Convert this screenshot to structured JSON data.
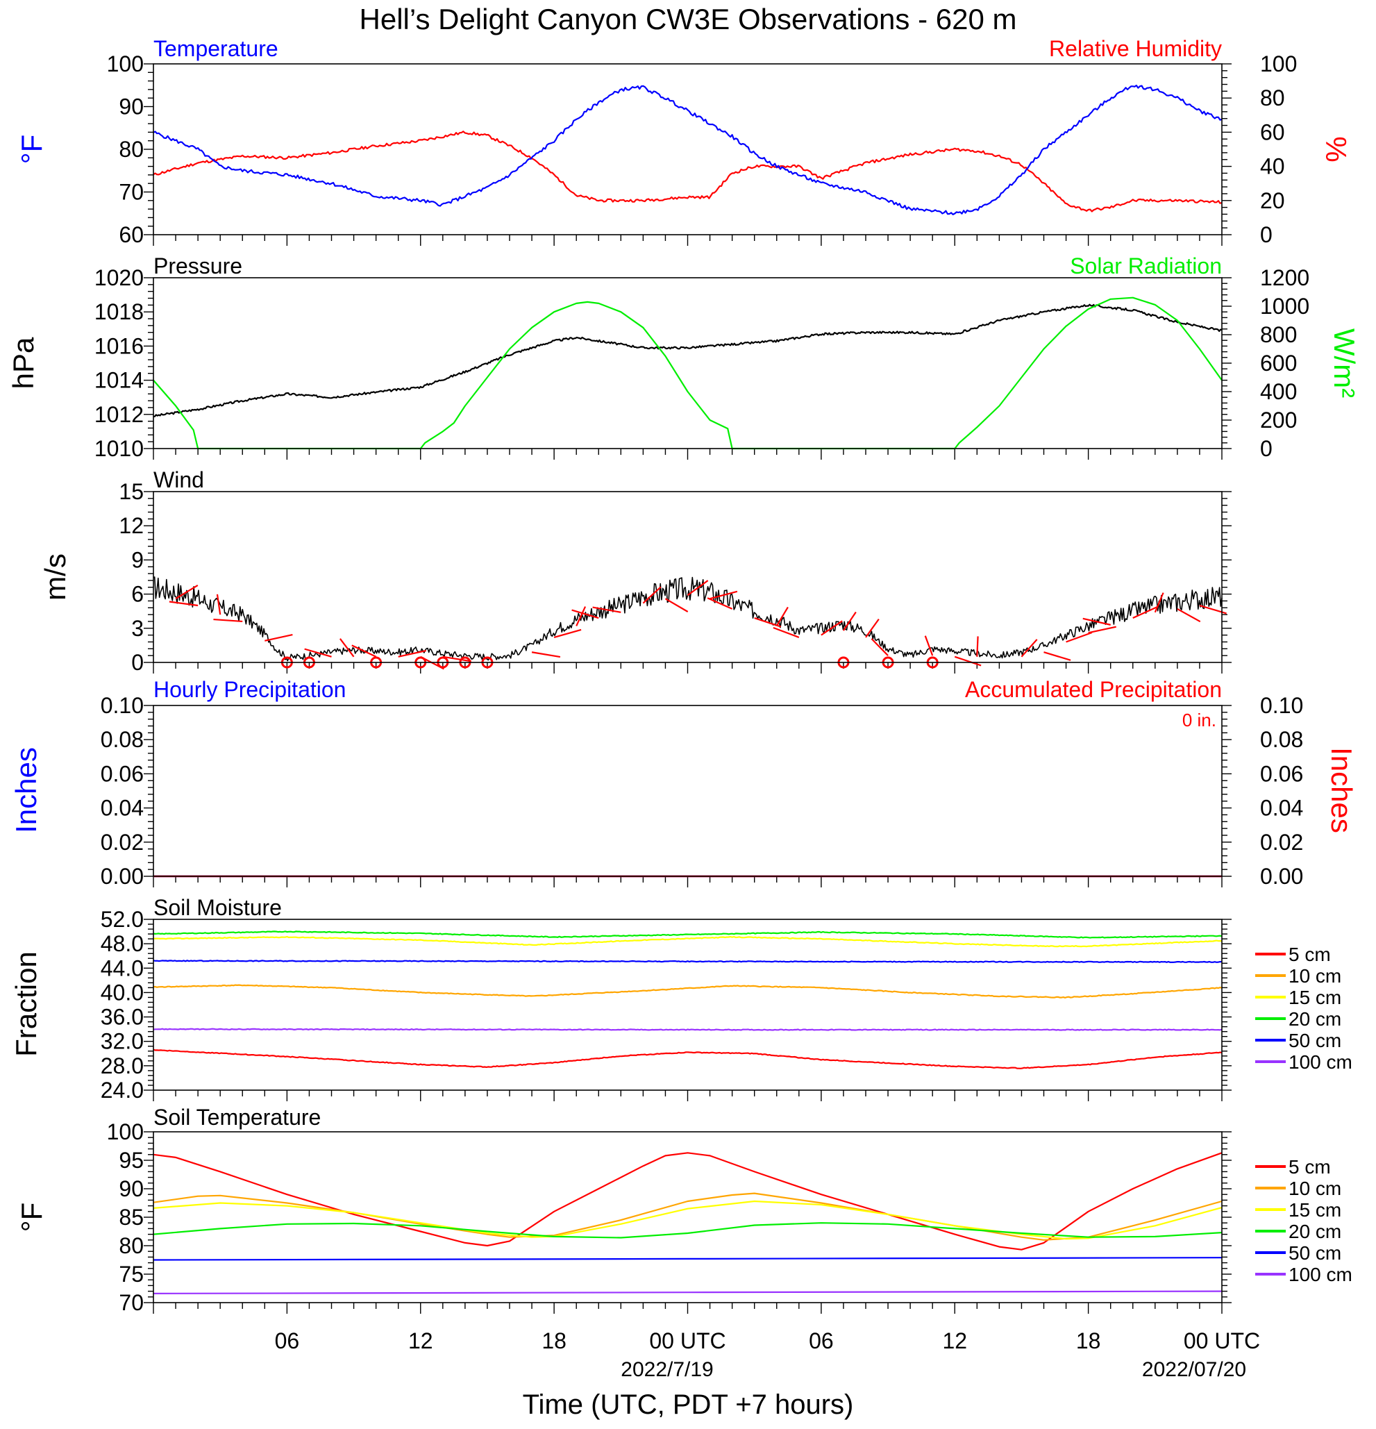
{
  "title": "Hell’s Delight Canyon CW3E Observations - 620 m",
  "x_axis": {
    "title": "Time (UTC, PDT +7 hours)",
    "tick_labels": [
      "06",
      "12",
      "18",
      "00 UTC",
      "06",
      "12",
      "18",
      "00 UTC"
    ],
    "date_labels": [
      "2022/7/19",
      "2022/07/20"
    ]
  },
  "colors": {
    "temperature": "#0000ff",
    "humidity": "#ff0000",
    "pressure": "#000000",
    "solar": "#00ee00",
    "wind": "#000000",
    "wind_barb": "#ff0000",
    "precip_hourly": "#0000ff",
    "precip_accum": "#ff0000",
    "depth_5cm": "#ff0000",
    "depth_10cm": "#ffa500",
    "depth_15cm": "#ffff00",
    "depth_20cm": "#00ee00",
    "depth_50cm": "#0000ff",
    "depth_100cm": "#9933ff"
  },
  "panels": {
    "temp_rh": {
      "left_title": "Temperature",
      "right_title": "Relative Humidity",
      "left_unit": "°F",
      "right_unit": "%",
      "left_ticks": [
        "100",
        "90",
        "80",
        "70",
        "60"
      ],
      "right_ticks": [
        "100",
        "80",
        "60",
        "40",
        "20",
        "0"
      ]
    },
    "pressure_solar": {
      "left_title": "Pressure",
      "right_title": "Solar Radiation",
      "left_unit": "hPa",
      "right_unit": "W/m²",
      "left_ticks": [
        "1020",
        "1018",
        "1016",
        "1014",
        "1012",
        "1010"
      ],
      "right_ticks": [
        "1200",
        "1000",
        "800",
        "600",
        "400",
        "200",
        "0"
      ]
    },
    "wind": {
      "left_title": "Wind",
      "left_unit": "m/s",
      "left_ticks": [
        "15",
        "12",
        "9",
        "6",
        "3",
        "0"
      ]
    },
    "precip": {
      "left_title": "Hourly Precipitation",
      "right_title": "Accumulated Precipitation",
      "accum_label": "0 in.",
      "left_unit": "Inches",
      "right_unit": "Inches",
      "left_ticks": [
        "0.10",
        "0.08",
        "0.06",
        "0.04",
        "0.02",
        "0.00"
      ],
      "right_ticks": [
        "0.10",
        "0.08",
        "0.06",
        "0.04",
        "0.02",
        "0.00"
      ]
    },
    "soil_moisture": {
      "left_title": "Soil Moisture",
      "left_unit": "Fraction",
      "left_ticks": [
        "52.0",
        "48.0",
        "44.0",
        "40.0",
        "36.0",
        "32.0",
        "28.0",
        "24.0"
      ],
      "legend": [
        "5 cm",
        "10 cm",
        "15 cm",
        "20 cm",
        "50 cm",
        "100 cm"
      ]
    },
    "soil_temp": {
      "left_title": "Soil Temperature",
      "left_unit": "°F",
      "left_ticks": [
        "100",
        "95",
        "90",
        "85",
        "80",
        "75",
        "70"
      ],
      "legend": [
        "5 cm",
        "10 cm",
        "15 cm",
        "20 cm",
        "50 cm",
        "100 cm"
      ]
    }
  },
  "chart_data": [
    {
      "type": "line",
      "title": "Temperature / Relative Humidity",
      "x_unit": "hours since 2022-07-18 00 UTC",
      "ylim": [
        60,
        100
      ],
      "y2lim": [
        0,
        100
      ],
      "series": [
        {
          "name": "Temperature",
          "axis": "left",
          "x": [
            0,
            2,
            3,
            4,
            6,
            8,
            10,
            12,
            13,
            14,
            15,
            16,
            17,
            18,
            19,
            20,
            21,
            22,
            23,
            24,
            25,
            26,
            27,
            28,
            29,
            30,
            31,
            32,
            34,
            36,
            37,
            38,
            39,
            40,
            41,
            42,
            43,
            44,
            45,
            46,
            47,
            48
          ],
          "values": [
            84,
            80,
            76,
            75,
            74,
            72,
            69,
            68,
            67,
            69,
            71,
            74,
            78,
            82,
            87,
            91,
            94,
            94.5,
            92,
            89,
            86,
            83,
            79,
            76,
            74,
            72,
            71,
            70,
            66,
            65,
            66,
            69,
            74,
            80,
            84,
            88,
            92,
            95,
            94,
            92,
            89,
            87
          ]
        },
        {
          "name": "Relative Humidity",
          "axis": "right",
          "x": [
            0,
            2,
            4,
            6,
            8,
            10,
            12,
            14,
            15,
            16,
            17,
            18,
            19,
            20,
            21,
            22,
            24,
            25,
            26,
            27,
            28,
            29,
            30,
            32,
            34,
            36,
            37,
            38,
            39,
            40,
            41,
            42,
            43,
            44,
            46,
            48
          ],
          "values": [
            35,
            42,
            46,
            45,
            48,
            52,
            55,
            60,
            58,
            52,
            45,
            35,
            23,
            20,
            20,
            20,
            22,
            22,
            36,
            40,
            40,
            40,
            33,
            42,
            47,
            50,
            49,
            46,
            41,
            30,
            18,
            14,
            16,
            20,
            20,
            19
          ]
        }
      ]
    },
    {
      "type": "line",
      "title": "Pressure / Solar Radiation",
      "x_unit": "hours since 2022-07-18 00 UTC",
      "ylim": [
        1010,
        1020
      ],
      "y2lim": [
        0,
        1200
      ],
      "series": [
        {
          "name": "Pressure",
          "axis": "left",
          "x": [
            0,
            2,
            4,
            6,
            8,
            10,
            12,
            14,
            16,
            18,
            19,
            20,
            22,
            24,
            26,
            28,
            30,
            32,
            34,
            36,
            38,
            40,
            41,
            42,
            44,
            46,
            48
          ],
          "values": [
            1011.9,
            1012.3,
            1012.8,
            1013.2,
            1013.0,
            1013.3,
            1013.6,
            1014.5,
            1015.5,
            1016.3,
            1016.5,
            1016.3,
            1015.9,
            1015.9,
            1016.1,
            1016.3,
            1016.7,
            1016.8,
            1016.8,
            1016.7,
            1017.5,
            1018.0,
            1018.2,
            1018.4,
            1018.1,
            1017.4,
            1016.9
          ]
        },
        {
          "name": "Solar Radiation",
          "axis": "right",
          "x": [
            0,
            1,
            1.8,
            2,
            3,
            12,
            12.2,
            13,
            13.5,
            14,
            15,
            16,
            17,
            18,
            19,
            19.5,
            20,
            21,
            22,
            23,
            24,
            25,
            25.8,
            26,
            27,
            36,
            36.2,
            37,
            38,
            39,
            40,
            41,
            42,
            43,
            44,
            45,
            46,
            47,
            48
          ],
          "values": [
            480,
            300,
            130,
            0,
            0,
            0,
            40,
            120,
            180,
            300,
            500,
            700,
            850,
            960,
            1020,
            1030,
            1020,
            960,
            850,
            650,
            400,
            200,
            140,
            0,
            0,
            0,
            40,
            150,
            300,
            500,
            700,
            860,
            980,
            1050,
            1060,
            1010,
            900,
            700,
            480
          ]
        }
      ]
    },
    {
      "type": "line",
      "title": "Wind",
      "x_unit": "hours since 2022-07-18 00 UTC",
      "ylim": [
        0,
        15
      ],
      "series": [
        {
          "name": "Wind speed",
          "x": [
            0,
            1,
            2,
            3,
            4,
            5,
            5.5,
            6,
            7,
            8,
            9,
            10,
            11,
            12,
            13,
            14,
            15,
            16,
            17,
            18,
            19,
            20,
            21,
            22,
            23,
            24,
            25,
            26,
            27,
            28,
            29,
            30,
            31,
            32,
            33,
            34,
            35,
            36,
            37,
            38,
            39,
            40,
            41,
            42,
            43,
            44,
            45,
            46,
            47,
            48
          ],
          "values": [
            6.6,
            6.2,
            5.6,
            4.8,
            4.2,
            2.5,
            1.2,
            0.4,
            0.6,
            0.9,
            1.1,
            1.0,
            0.9,
            1.1,
            0.8,
            0.6,
            0.5,
            0.6,
            1.5,
            2.8,
            3.8,
            4.5,
            5.0,
            5.8,
            6.2,
            6.5,
            6.2,
            5.3,
            4.5,
            3.8,
            2.8,
            3.0,
            3.4,
            2.8,
            1.2,
            0.6,
            1.2,
            1.0,
            0.8,
            0.6,
            0.9,
            1.5,
            2.4,
            3.2,
            3.9,
            4.5,
            5.0,
            5.3,
            5.6,
            5.8
          ]
        },
        {
          "name": "Calm markers",
          "x": [
            6,
            7,
            10,
            12,
            13,
            14,
            15,
            31,
            33,
            35
          ],
          "values": [
            0,
            0,
            0,
            0,
            0,
            0,
            0,
            0,
            0,
            0
          ]
        }
      ]
    },
    {
      "type": "line",
      "title": "Hourly Precipitation / Accumulated Precipitation",
      "x_unit": "hours since 2022-07-18 00 UTC",
      "ylim": [
        0,
        0.1
      ],
      "y2lim": [
        0,
        0.1
      ],
      "series": [
        {
          "name": "Hourly Precipitation",
          "axis": "left",
          "x": [
            0,
            48
          ],
          "values": [
            0,
            0
          ]
        },
        {
          "name": "Accumulated Precipitation",
          "axis": "right",
          "x": [
            0,
            48
          ],
          "values": [
            0,
            0
          ]
        }
      ]
    },
    {
      "type": "line",
      "title": "Soil Moisture",
      "x_unit": "hours since 2022-07-18 00 UTC",
      "ylim": [
        24,
        52
      ],
      "series": [
        {
          "name": "5 cm",
          "x": [
            0,
            6,
            12,
            15,
            18,
            21,
            24,
            27,
            30,
            36,
            39,
            42,
            45,
            48
          ],
          "values": [
            30.6,
            29.5,
            28.2,
            27.8,
            28.5,
            29.6,
            30.2,
            30.0,
            29.0,
            27.9,
            27.6,
            28.2,
            29.4,
            30.2
          ]
        },
        {
          "name": "10 cm",
          "x": [
            0,
            4,
            8,
            12,
            17,
            22,
            26,
            30,
            34,
            38,
            41,
            44,
            48
          ],
          "values": [
            40.9,
            41.2,
            40.8,
            40.0,
            39.4,
            40.3,
            41.1,
            40.8,
            40.0,
            39.4,
            39.2,
            39.8,
            40.8
          ]
        },
        {
          "name": "15 cm",
          "x": [
            0,
            6,
            12,
            17,
            22,
            26,
            30,
            36,
            40,
            42,
            48
          ],
          "values": [
            48.8,
            49.1,
            48.6,
            47.8,
            48.6,
            49.1,
            48.8,
            48.0,
            47.6,
            47.6,
            48.5
          ]
        },
        {
          "name": "20 cm",
          "x": [
            0,
            6,
            12,
            18,
            24,
            30,
            36,
            42,
            48
          ],
          "values": [
            49.6,
            50.0,
            49.7,
            49.1,
            49.5,
            49.9,
            49.6,
            49.0,
            49.3
          ]
        },
        {
          "name": "50 cm",
          "x": [
            0,
            24,
            48
          ],
          "values": [
            45.2,
            45.1,
            45.0
          ]
        },
        {
          "name": "100 cm",
          "x": [
            0,
            24,
            48
          ],
          "values": [
            34.0,
            33.9,
            33.9
          ]
        }
      ]
    },
    {
      "type": "line",
      "title": "Soil Temperature",
      "x_unit": "hours since 2022-07-18 00 UTC",
      "ylim": [
        70,
        100
      ],
      "series": [
        {
          "name": "5 cm",
          "x": [
            0,
            1,
            3,
            6,
            9,
            12,
            14,
            15,
            16,
            18,
            20,
            22,
            23,
            24,
            25,
            27,
            30,
            33,
            36,
            38,
            39,
            40,
            42,
            44,
            46,
            48
          ],
          "values": [
            96.0,
            95.5,
            93.0,
            89.0,
            85.5,
            82.5,
            80.5,
            80.0,
            80.8,
            86.0,
            90.0,
            94.0,
            95.8,
            96.3,
            95.8,
            93.0,
            89.0,
            85.5,
            82.0,
            79.8,
            79.3,
            80.5,
            86.0,
            90.0,
            93.5,
            96.3
          ]
        },
        {
          "name": "10 cm",
          "x": [
            0,
            2,
            3,
            6,
            9,
            12,
            15,
            16,
            18,
            21,
            24,
            26,
            27,
            30,
            33,
            36,
            39,
            40,
            42,
            45,
            48
          ],
          "values": [
            87.6,
            88.7,
            88.8,
            87.5,
            85.8,
            83.8,
            82.0,
            81.5,
            81.8,
            84.5,
            87.8,
            88.9,
            89.2,
            87.5,
            85.5,
            83.5,
            81.5,
            81.0,
            81.5,
            84.5,
            87.8
          ]
        },
        {
          "name": "15 cm",
          "x": [
            0,
            3,
            6,
            9,
            12,
            15,
            17,
            18,
            21,
            24,
            27,
            30,
            33,
            36,
            39,
            41,
            42,
            45,
            48
          ],
          "values": [
            86.6,
            87.5,
            87.0,
            85.8,
            84.0,
            82.2,
            81.5,
            81.6,
            83.8,
            86.5,
            87.8,
            87.2,
            85.5,
            83.5,
            82.0,
            81.2,
            81.3,
            83.5,
            86.7
          ]
        },
        {
          "name": "20 cm",
          "x": [
            0,
            3,
            6,
            9,
            12,
            15,
            18,
            21,
            24,
            27,
            30,
            33,
            36,
            39,
            42,
            45,
            48
          ],
          "values": [
            82.0,
            83.0,
            83.8,
            83.9,
            83.5,
            82.5,
            81.6,
            81.4,
            82.2,
            83.6,
            84.0,
            83.8,
            83.0,
            82.2,
            81.5,
            81.6,
            82.3
          ]
        },
        {
          "name": "50 cm",
          "x": [
            0,
            24,
            48
          ],
          "values": [
            77.5,
            77.7,
            77.9
          ]
        },
        {
          "name": "100 cm",
          "x": [
            0,
            24,
            48
          ],
          "values": [
            71.6,
            71.8,
            72.0
          ]
        }
      ]
    }
  ]
}
